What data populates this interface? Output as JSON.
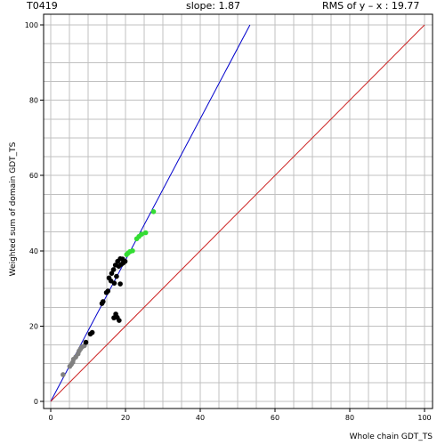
{
  "header": {
    "target": "T0419",
    "slope": "slope: 1.87",
    "rms": "RMS of  y – x : 19.77"
  },
  "chart_data": {
    "type": "scatter",
    "title": "",
    "xlabel": "Whole chain GDT_TS",
    "ylabel": "Weighted sum of domain GDT_TS",
    "xlim": [
      0,
      100
    ],
    "ylim": [
      0,
      100
    ],
    "xticks": [
      0,
      20,
      40,
      60,
      80,
      100
    ],
    "yticks": [
      0,
      20,
      40,
      60,
      80,
      100
    ],
    "grid": true,
    "lines": [
      {
        "name": "",
        "color": "#0000cc",
        "points": [
          [
            0,
            0
          ],
          [
            53.3,
            100
          ]
        ]
      },
      {
        "name": "",
        "color": "#cc2222",
        "points": [
          [
            0,
            0
          ],
          [
            100,
            100
          ]
        ]
      }
    ],
    "series": [
      {
        "name": "",
        "color": "#808080",
        "points": [
          [
            3.3,
            7.1
          ],
          [
            5.1,
            9.3
          ],
          [
            5.5,
            9.8
          ],
          [
            5.9,
            10.4
          ],
          [
            6.1,
            11.2
          ],
          [
            6.7,
            11.8
          ],
          [
            7.3,
            12.6
          ],
          [
            7.6,
            13.4
          ],
          [
            8.0,
            14.0
          ],
          [
            8.4,
            14.5
          ],
          [
            9.0,
            14.8
          ]
        ]
      },
      {
        "name": "",
        "color": "#000000",
        "points": [
          [
            9.4,
            15.7
          ],
          [
            10.6,
            17.9
          ],
          [
            11.1,
            18.3
          ],
          [
            13.7,
            26.0
          ],
          [
            14.0,
            26.5
          ],
          [
            14.9,
            28.9
          ],
          [
            15.3,
            29.3
          ],
          [
            15.6,
            32.8
          ],
          [
            16.1,
            32.0
          ],
          [
            16.3,
            34.0
          ],
          [
            16.8,
            35.0
          ],
          [
            17.3,
            36.2
          ],
          [
            17.0,
            31.4
          ],
          [
            17.6,
            33.2
          ],
          [
            17.9,
            37.2
          ],
          [
            18.2,
            35.9
          ],
          [
            18.6,
            37.9
          ],
          [
            18.9,
            36.4
          ],
          [
            19.2,
            37.8
          ],
          [
            19.4,
            36.8
          ],
          [
            19.9,
            37.2
          ],
          [
            18.6,
            31.2
          ],
          [
            16.9,
            22.2
          ],
          [
            17.4,
            23.2
          ],
          [
            17.8,
            22.3
          ],
          [
            18.3,
            21.5
          ]
        ]
      },
      {
        "name": "",
        "color": "#33dd33",
        "points": [
          [
            20.3,
            39.0
          ],
          [
            20.7,
            39.4
          ],
          [
            21.2,
            39.8
          ],
          [
            21.9,
            40.0
          ],
          [
            23.0,
            43.2
          ],
          [
            23.6,
            43.8
          ],
          [
            24.3,
            44.4
          ],
          [
            25.4,
            44.8
          ],
          [
            27.5,
            50.4
          ]
        ]
      }
    ]
  }
}
